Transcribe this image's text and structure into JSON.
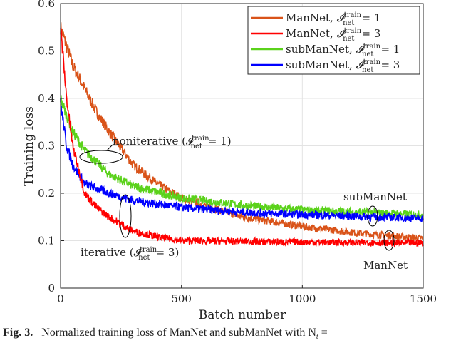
{
  "chart_data": {
    "type": "line",
    "xlabel": "Batch number",
    "ylabel": "Training loss",
    "xlim": [
      0,
      1500
    ],
    "ylim": [
      0,
      0.6
    ],
    "xticks": [
      "0",
      "500",
      "1000",
      "1500"
    ],
    "yticks": [
      "0",
      "0.1",
      "0.2",
      "0.3",
      "0.4",
      "0.5",
      "0.6"
    ],
    "grid": true,
    "legend_position": "top-right",
    "series": [
      {
        "name": "ManNet, 𝓘_net^train = 1",
        "label_main": "ManNet, ",
        "color": "#d95319",
        "points": [
          [
            0,
            0.55
          ],
          [
            50,
            0.47
          ],
          [
            100,
            0.42
          ],
          [
            150,
            0.37
          ],
          [
            200,
            0.33
          ],
          [
            300,
            0.26
          ],
          [
            400,
            0.22
          ],
          [
            500,
            0.19
          ],
          [
            750,
            0.15
          ],
          [
            1000,
            0.13
          ],
          [
            1250,
            0.115
          ],
          [
            1500,
            0.105
          ]
        ]
      },
      {
        "name": "ManNet, 𝓘_net^train = 3",
        "label_main": "ManNet, ",
        "color": "#ff0000",
        "points": [
          [
            0,
            0.55
          ],
          [
            25,
            0.4
          ],
          [
            50,
            0.3
          ],
          [
            100,
            0.2
          ],
          [
            150,
            0.17
          ],
          [
            200,
            0.15
          ],
          [
            300,
            0.12
          ],
          [
            400,
            0.108
          ],
          [
            500,
            0.1
          ],
          [
            1000,
            0.097
          ],
          [
            1500,
            0.095
          ]
        ]
      },
      {
        "name": "subManNet, 𝓘_net^train = 1",
        "label_main": "subManNet, ",
        "color": "#5bd21b",
        "points": [
          [
            0,
            0.4
          ],
          [
            50,
            0.33
          ],
          [
            100,
            0.29
          ],
          [
            200,
            0.24
          ],
          [
            300,
            0.215
          ],
          [
            500,
            0.19
          ],
          [
            750,
            0.175
          ],
          [
            1000,
            0.165
          ],
          [
            1500,
            0.155
          ]
        ]
      },
      {
        "name": "subManNet, 𝓘_net^train = 3",
        "label_main": "subManNet, ",
        "color": "#0000ff",
        "points": [
          [
            0,
            0.39
          ],
          [
            25,
            0.3
          ],
          [
            50,
            0.26
          ],
          [
            100,
            0.22
          ],
          [
            200,
            0.2
          ],
          [
            300,
            0.185
          ],
          [
            500,
            0.17
          ],
          [
            750,
            0.16
          ],
          [
            1000,
            0.155
          ],
          [
            1500,
            0.147
          ]
        ]
      }
    ],
    "legend_values": [
      "1",
      "3",
      "1",
      "3"
    ],
    "annotations": {
      "noniterative": "noniterative (𝓘",
      "noniterative_val": "= 1)",
      "iterative": "iterative (𝓘",
      "iterative_val": "= 3)",
      "submannet": "subManNet",
      "mannet": "ManNet",
      "sup": "train",
      "sub": "net"
    }
  },
  "caption": {
    "fig": "Fig. 3.",
    "text": "Normalized training loss of ManNet and subManNet with N",
    "sub": "t",
    "tail": " ="
  }
}
